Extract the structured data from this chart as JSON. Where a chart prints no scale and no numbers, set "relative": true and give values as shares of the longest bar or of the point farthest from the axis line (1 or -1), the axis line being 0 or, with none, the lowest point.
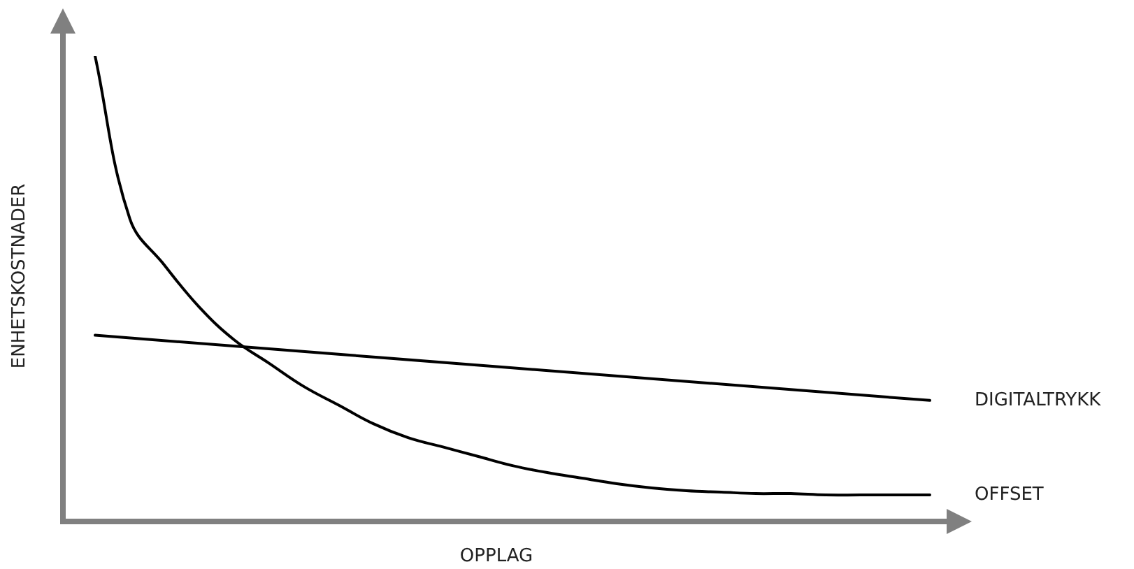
{
  "chart_data": {
    "type": "line",
    "relative": true,
    "xlabel": "OPPLAG",
    "ylabel": "ENHETSKOSTNADER",
    "categories": [
      null,
      null,
      null,
      null,
      null,
      null,
      null,
      null,
      null,
      null,
      null,
      null,
      null,
      null,
      null,
      null,
      null,
      null,
      null,
      null,
      null,
      null,
      null,
      null,
      null
    ],
    "series": [
      {
        "name": "DIGITALTRYKK",
        "color": "#000000",
        "values": [
          0.4,
          null,
          null,
          null,
          null,
          null,
          null,
          null,
          null,
          null,
          null,
          null,
          null,
          null,
          null,
          null,
          null,
          null,
          null,
          null,
          null,
          null,
          null,
          null,
          0.26
        ]
      },
      {
        "name": "OFFSET",
        "color": "#000000",
        "values": [
          1,
          0.65,
          0.55,
          0.46,
          0.39,
          0.34,
          0.29,
          0.25,
          0.21,
          0.18,
          0.16,
          0.14,
          0.12,
          0.105,
          0.093,
          0.081,
          0.072,
          0.066,
          0.063,
          0.06,
          0.06,
          0.057,
          0.057,
          0.057,
          0.057
        ]
      }
    ],
    "legend": false,
    "marker": "none",
    "line_style": "solid"
  }
}
